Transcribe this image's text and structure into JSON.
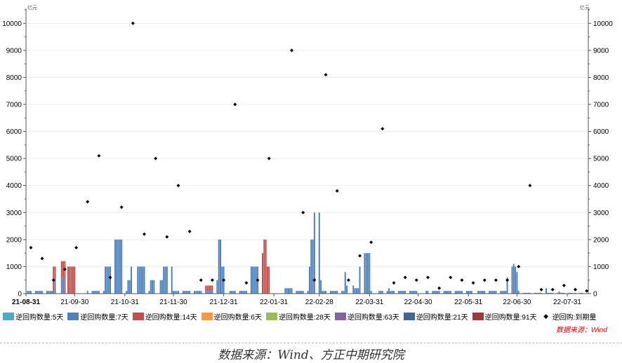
{
  "chart_data": {
    "type": "bar",
    "unit_left": "亿元",
    "unit_right": "亿元",
    "ylim": [
      0,
      10500
    ],
    "yticks": [
      0,
      1000,
      2000,
      3000,
      4000,
      5000,
      6000,
      7000,
      8000,
      9000,
      10000
    ],
    "ytick_labels": [
      "0",
      "1000",
      "2000",
      "3000",
      "4000",
      "5000",
      "6000",
      "7000",
      "8000",
      "9000",
      "10000"
    ],
    "xlim": [
      "2021-08-31",
      "2022-08-13"
    ],
    "xticks": [
      "2021-08-31",
      "2021-09-30",
      "2021-10-31",
      "2021-11-30",
      "2021-12-31",
      "2022-01-31",
      "2022-02-28",
      "2022-03-31",
      "2022-04-30",
      "2022-05-31",
      "2022-06-30",
      "2022-07-31"
    ],
    "xtick_labels": [
      "21-08-31",
      "21-09-30",
      "21-10-31",
      "21-11-30",
      "21-12-31",
      "22-01-31",
      "22-02-28",
      "22-03-31",
      "22-04-30",
      "22-05-31",
      "22-06-30",
      "22-07-31"
    ],
    "grid": true,
    "legend_position": "bottom",
    "series": [
      {
        "name": "逆回购数量:5天",
        "color": "#4BACC6"
      },
      {
        "name": "逆回购数量:7天",
        "color": "#4F81BD",
        "key": "v7"
      },
      {
        "name": "逆回购数量:14天",
        "color": "#C0504D",
        "key": "v14"
      },
      {
        "name": "逆回购数量:6天",
        "color": "#F79646"
      },
      {
        "name": "逆回购数量:28天",
        "color": "#9BBB59"
      },
      {
        "name": "逆回购数量:63天",
        "color": "#8064A2"
      },
      {
        "name": "逆回购数量:21天",
        "color": "#3F6797"
      },
      {
        "name": "逆回购数量:91天",
        "color": "#9E3B38"
      }
    ],
    "scatter_series": {
      "name": "逆回购:到期量",
      "color": "#000000"
    },
    "bars_note": "trading-day ranges (weekdays)",
    "bars": [
      {
        "from": "2021-09-01",
        "to": "2021-09-03",
        "v7": 100,
        "v14": 0
      },
      {
        "from": "2021-09-06",
        "to": "2021-09-10",
        "v7": 100,
        "v14": 0
      },
      {
        "from": "2021-09-13",
        "to": "2021-09-16",
        "v7": 100,
        "v14": 0
      },
      {
        "from": "2021-09-17",
        "to": "2021-09-17",
        "v7": 0,
        "v14": 1000
      },
      {
        "from": "2021-09-18",
        "to": "2021-09-18",
        "v7": 500,
        "v14": 500
      },
      {
        "from": "2021-09-22",
        "to": "2021-09-23",
        "v7": 600,
        "v14": 600
      },
      {
        "from": "2021-09-24",
        "to": "2021-09-24",
        "v7": 0,
        "v14": 1200
      },
      {
        "from": "2021-09-26",
        "to": "2021-09-26",
        "v7": 0,
        "v14": 1000
      },
      {
        "from": "2021-09-27",
        "to": "2021-09-30",
        "v7": 0,
        "v14": 1000
      },
      {
        "from": "2021-10-08",
        "to": "2021-10-15",
        "v7": 100,
        "v14": 0
      },
      {
        "from": "2021-10-18",
        "to": "2021-10-18",
        "v7": 100,
        "v14": 0
      },
      {
        "from": "2021-10-19",
        "to": "2021-10-22",
        "v7": 1000,
        "v14": 0
      },
      {
        "from": "2021-10-25",
        "to": "2021-10-29",
        "v7": 2000,
        "v14": 0
      },
      {
        "from": "2021-11-01",
        "to": "2021-11-01",
        "v7": 100,
        "v14": 0
      },
      {
        "from": "2021-11-02",
        "to": "2021-11-03",
        "v7": 500,
        "v14": 0
      },
      {
        "from": "2021-11-04",
        "to": "2021-11-04",
        "v7": 1000,
        "v14": 0
      },
      {
        "from": "2021-11-08",
        "to": "2021-11-12",
        "v7": 1000,
        "v14": 0
      },
      {
        "from": "2021-11-15",
        "to": "2021-11-15",
        "v7": 100,
        "v14": 0
      },
      {
        "from": "2021-11-16",
        "to": "2021-11-18",
        "v7": 500,
        "v14": 0
      },
      {
        "from": "2021-11-22",
        "to": "2021-11-23",
        "v7": 500,
        "v14": 0
      },
      {
        "from": "2021-11-24",
        "to": "2021-11-26",
        "v7": 1000,
        "v14": 0
      },
      {
        "from": "2021-11-29",
        "to": "2021-11-29",
        "v7": 1000,
        "v14": 0
      },
      {
        "from": "2021-11-30",
        "to": "2021-12-03",
        "v7": 100,
        "v14": 0
      },
      {
        "from": "2021-12-06",
        "to": "2021-12-10",
        "v7": 100,
        "v14": 0
      },
      {
        "from": "2021-12-13",
        "to": "2021-12-17",
        "v7": 100,
        "v14": 0
      },
      {
        "from": "2021-12-20",
        "to": "2021-12-24",
        "v7": 100,
        "v14": 200
      },
      {
        "from": "2021-12-27",
        "to": "2021-12-27",
        "v7": 500,
        "v14": 0
      },
      {
        "from": "2021-12-28",
        "to": "2021-12-29",
        "v7": 2000,
        "v14": 0
      },
      {
        "from": "2021-12-30",
        "to": "2021-12-31",
        "v7": 1000,
        "v14": 0
      },
      {
        "from": "2022-01-04",
        "to": "2022-01-07",
        "v7": 100,
        "v14": 0
      },
      {
        "from": "2022-01-10",
        "to": "2022-01-14",
        "v7": 100,
        "v14": 0
      },
      {
        "from": "2022-01-17",
        "to": "2022-01-21",
        "v7": 1000,
        "v14": 0
      },
      {
        "from": "2022-01-24",
        "to": "2022-01-24",
        "v7": 0,
        "v14": 1500
      },
      {
        "from": "2022-01-25",
        "to": "2022-01-26",
        "v7": 0,
        "v14": 2000
      },
      {
        "from": "2022-01-27",
        "to": "2022-01-28",
        "v7": 0,
        "v14": 1000
      },
      {
        "from": "2022-02-07",
        "to": "2022-02-11",
        "v7": 200,
        "v14": 0
      },
      {
        "from": "2022-02-14",
        "to": "2022-02-18",
        "v7": 100,
        "v14": 0
      },
      {
        "from": "2022-02-21",
        "to": "2022-02-21",
        "v7": 100,
        "v14": 0
      },
      {
        "from": "2022-02-22",
        "to": "2022-02-22",
        "v7": 1000,
        "v14": 0
      },
      {
        "from": "2022-02-23",
        "to": "2022-02-24",
        "v7": 2000,
        "v14": 0
      },
      {
        "from": "2022-02-25",
        "to": "2022-02-25",
        "v7": 3000,
        "v14": 0
      },
      {
        "from": "2022-02-28",
        "to": "2022-02-28",
        "v7": 3000,
        "v14": 0
      },
      {
        "from": "2022-03-01",
        "to": "2022-03-01",
        "v7": 500,
        "v14": 0
      },
      {
        "from": "2022-03-02",
        "to": "2022-03-04",
        "v7": 100,
        "v14": 0
      },
      {
        "from": "2022-03-07",
        "to": "2022-03-11",
        "v7": 100,
        "v14": 0
      },
      {
        "from": "2022-03-14",
        "to": "2022-03-15",
        "v7": 100,
        "v14": 0
      },
      {
        "from": "2022-03-16",
        "to": "2022-03-16",
        "v7": 800,
        "v14": 0
      },
      {
        "from": "2022-03-17",
        "to": "2022-03-17",
        "v7": 300,
        "v14": 0
      },
      {
        "from": "2022-03-21",
        "to": "2022-03-21",
        "v7": 300,
        "v14": 0
      },
      {
        "from": "2022-03-22",
        "to": "2022-03-24",
        "v7": 200,
        "v14": 0
      },
      {
        "from": "2022-03-25",
        "to": "2022-03-25",
        "v7": 1000,
        "v14": 0
      },
      {
        "from": "2022-03-28",
        "to": "2022-03-31",
        "v7": 1500,
        "v14": 0
      },
      {
        "from": "2022-04-01",
        "to": "2022-04-01",
        "v7": 100,
        "v14": 0
      },
      {
        "from": "2022-04-06",
        "to": "2022-04-08",
        "v7": 100,
        "v14": 0
      },
      {
        "from": "2022-04-11",
        "to": "2022-04-11",
        "v7": 100,
        "v14": 0
      },
      {
        "from": "2022-04-12",
        "to": "2022-04-12",
        "v7": 200,
        "v14": 0
      },
      {
        "from": "2022-04-13",
        "to": "2022-04-15",
        "v7": 100,
        "v14": 0
      },
      {
        "from": "2022-04-18",
        "to": "2022-04-22",
        "v7": 100,
        "v14": 0
      },
      {
        "from": "2022-04-25",
        "to": "2022-04-29",
        "v7": 100,
        "v14": 0
      },
      {
        "from": "2022-05-05",
        "to": "2022-05-13",
        "v7": 100,
        "v14": 0
      },
      {
        "from": "2022-05-16",
        "to": "2022-05-27",
        "v7": 100,
        "v14": 0
      },
      {
        "from": "2022-05-30",
        "to": "2022-06-02",
        "v7": 100,
        "v14": 0
      },
      {
        "from": "2022-06-06",
        "to": "2022-06-10",
        "v7": 100,
        "v14": 0
      },
      {
        "from": "2022-06-13",
        "to": "2022-06-17",
        "v7": 100,
        "v14": 0
      },
      {
        "from": "2022-06-20",
        "to": "2022-06-23",
        "v7": 100,
        "v14": 0
      },
      {
        "from": "2022-06-24",
        "to": "2022-06-24",
        "v7": 600,
        "v14": 0
      },
      {
        "from": "2022-06-27",
        "to": "2022-06-27",
        "v7": 1000,
        "v14": 0
      },
      {
        "from": "2022-06-28",
        "to": "2022-06-28",
        "v7": 1100,
        "v14": 0
      },
      {
        "from": "2022-06-29",
        "to": "2022-06-29",
        "v7": 1000,
        "v14": 0
      },
      {
        "from": "2022-06-30",
        "to": "2022-06-30",
        "v7": 800,
        "v14": 0
      },
      {
        "from": "2022-07-01",
        "to": "2022-07-01",
        "v7": 100,
        "v14": 0
      },
      {
        "from": "2022-07-04",
        "to": "2022-07-15",
        "v7": 30,
        "v14": 0
      },
      {
        "from": "2022-07-18",
        "to": "2022-07-18",
        "v7": 200,
        "v14": 0
      },
      {
        "from": "2022-07-19",
        "to": "2022-07-25",
        "v7": 30,
        "v14": 0
      },
      {
        "from": "2022-07-26",
        "to": "2022-07-26",
        "v7": 80,
        "v14": 0
      },
      {
        "from": "2022-07-27",
        "to": "2022-08-03",
        "v7": 30,
        "v14": 0
      },
      {
        "from": "2022-08-05",
        "to": "2022-08-09",
        "v7": 30,
        "v14": 0
      }
    ],
    "maturity": [
      [
        "2021-09-03",
        1700
      ],
      [
        "2021-09-10",
        1300
      ],
      [
        "2021-09-17",
        500
      ],
      [
        "2021-09-24",
        900
      ],
      [
        "2021-10-01",
        1700
      ],
      [
        "2021-10-08",
        3400
      ],
      [
        "2021-10-15",
        5100
      ],
      [
        "2021-10-22",
        600
      ],
      [
        "2021-10-29",
        3200
      ],
      [
        "2021-11-05",
        10000
      ],
      [
        "2021-11-12",
        2200
      ],
      [
        "2021-11-19",
        5000
      ],
      [
        "2021-11-26",
        2100
      ],
      [
        "2021-12-03",
        4000
      ],
      [
        "2021-12-10",
        2300
      ],
      [
        "2021-12-17",
        500
      ],
      [
        "2021-12-24",
        500
      ],
      [
        "2021-12-31",
        500
      ],
      [
        "2022-01-07",
        7000
      ],
      [
        "2022-01-14",
        400
      ],
      [
        "2022-01-21",
        500
      ],
      [
        "2022-01-28",
        5000
      ],
      [
        "2022-02-11",
        9000
      ],
      [
        "2022-02-18",
        3000
      ],
      [
        "2022-02-25",
        500
      ],
      [
        "2022-03-04",
        8100
      ],
      [
        "2022-03-11",
        3800
      ],
      [
        "2022-03-18",
        500
      ],
      [
        "2022-03-25",
        1400
      ],
      [
        "2022-04-01",
        1900
      ],
      [
        "2022-04-08",
        6100
      ],
      [
        "2022-04-15",
        400
      ],
      [
        "2022-04-22",
        600
      ],
      [
        "2022-04-29",
        500
      ],
      [
        "2022-05-06",
        600
      ],
      [
        "2022-05-13",
        200
      ],
      [
        "2022-05-20",
        600
      ],
      [
        "2022-05-27",
        500
      ],
      [
        "2022-06-03",
        400
      ],
      [
        "2022-06-10",
        500
      ],
      [
        "2022-06-17",
        500
      ],
      [
        "2022-06-24",
        500
      ],
      [
        "2022-07-01",
        1000
      ],
      [
        "2022-07-08",
        4000
      ],
      [
        "2022-07-15",
        150
      ],
      [
        "2022-07-22",
        150
      ],
      [
        "2022-07-29",
        300
      ],
      [
        "2022-08-05",
        150
      ],
      [
        "2022-08-12",
        100
      ]
    ]
  },
  "source_red": "数据来源：Wind",
  "caption": "数据来源：Wind、方正中期研究院"
}
